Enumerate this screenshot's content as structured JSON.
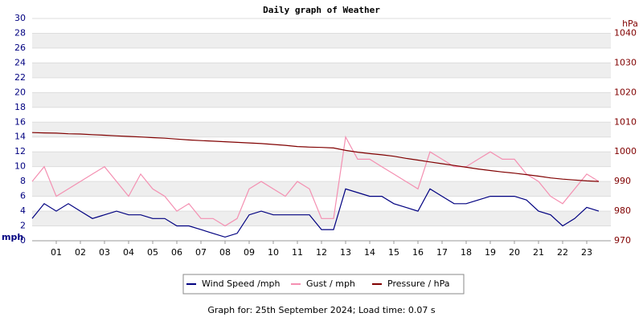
{
  "chart_data": {
    "type": "line",
    "title": "Daily graph of Weather",
    "ylabel": "mph",
    "y2label": "hPa",
    "footer": "Graph for: 25th September 2024; Load time: 0.07 s",
    "x": [
      0,
      0.5,
      1,
      1.5,
      2,
      2.5,
      3,
      3.5,
      4,
      4.5,
      5,
      5.5,
      6,
      6.5,
      7,
      7.5,
      8,
      8.5,
      9,
      9.5,
      10,
      10.5,
      11,
      11.5,
      12,
      12.5,
      13,
      13.5,
      14,
      14.5,
      15,
      15.5,
      16,
      16.5,
      17,
      17.5,
      18,
      18.5,
      19,
      19.5,
      20,
      20.5,
      21,
      21.5,
      22,
      22.5,
      23,
      23.5
    ],
    "xlim": [
      0,
      24
    ],
    "xticks": [
      {
        "value": 1,
        "label": "01"
      },
      {
        "value": 2,
        "label": "02"
      },
      {
        "value": 3,
        "label": "03"
      },
      {
        "value": 4,
        "label": "04"
      },
      {
        "value": 5,
        "label": "05"
      },
      {
        "value": 6,
        "label": "06"
      },
      {
        "value": 7,
        "label": "07"
      },
      {
        "value": 8,
        "label": "08"
      },
      {
        "value": 9,
        "label": "09"
      },
      {
        "value": 10,
        "label": "10"
      },
      {
        "value": 11,
        "label": "11"
      },
      {
        "value": 12,
        "label": "12"
      },
      {
        "value": 13,
        "label": "13"
      },
      {
        "value": 14,
        "label": "14"
      },
      {
        "value": 15,
        "label": "15"
      },
      {
        "value": 16,
        "label": "16"
      },
      {
        "value": 17,
        "label": "17"
      },
      {
        "value": 18,
        "label": "18"
      },
      {
        "value": 19,
        "label": "19"
      },
      {
        "value": 20,
        "label": "20"
      },
      {
        "value": 21,
        "label": "21"
      },
      {
        "value": 22,
        "label": "22"
      },
      {
        "value": 23,
        "label": "23"
      }
    ],
    "ylim": [
      0,
      30
    ],
    "yticks": [
      0,
      2,
      4,
      6,
      8,
      10,
      12,
      14,
      16,
      18,
      20,
      22,
      24,
      26,
      28,
      30
    ],
    "y2lim": [
      970,
      1045
    ],
    "y2ticks": [
      970,
      980,
      990,
      1000,
      1010,
      1020,
      1030,
      1040
    ],
    "grid": true,
    "legend": "bottom",
    "series": [
      {
        "name": "Gust / mph",
        "color": "#f48fb1",
        "values": [
          8,
          10,
          6,
          7,
          8,
          9,
          10,
          8,
          6,
          9,
          7,
          6,
          4,
          5,
          3,
          3,
          2,
          3,
          7,
          8,
          7,
          6,
          8,
          7,
          3,
          3,
          14,
          11,
          11,
          10,
          9,
          8,
          7,
          12,
          11,
          10,
          10,
          11,
          12,
          11,
          11,
          9,
          8,
          6,
          5,
          7,
          9,
          8
        ]
      },
      {
        "name": "Wind Speed /mph",
        "color": "#000080",
        "values": [
          3,
          5,
          4,
          5,
          4,
          3,
          3.5,
          4,
          3.5,
          3.5,
          3,
          3,
          2,
          2,
          1.5,
          1,
          0.5,
          1,
          3.5,
          4,
          3.5,
          3.5,
          3.5,
          3.5,
          1.5,
          1.5,
          7,
          6.5,
          6,
          6,
          5,
          4.5,
          4,
          7,
          6,
          5,
          5,
          5.5,
          6,
          6,
          6,
          5.5,
          4,
          3.5,
          2,
          3,
          4.5,
          4
        ]
      },
      {
        "name": "Pressure / hPa",
        "color": "#800000",
        "axis": "y2",
        "values": [
          1006.5,
          1006.4,
          1006.3,
          1006.1,
          1006,
          1005.8,
          1005.6,
          1005.4,
          1005.2,
          1005,
          1004.8,
          1004.6,
          1004.3,
          1004,
          1003.8,
          1003.6,
          1003.4,
          1003.2,
          1003,
          1002.8,
          1002.5,
          1002.2,
          1001.8,
          1001.6,
          1001.5,
          1001.3,
          1000.5,
          999.9,
          999.4,
          999,
          998.5,
          997.8,
          997.2,
          996.6,
          996,
          995.4,
          994.8,
          994.2,
          993.7,
          993.2,
          992.8,
          992.3,
          991.8,
          991.2,
          990.8,
          990.5,
          990.2,
          990
        ]
      }
    ]
  }
}
